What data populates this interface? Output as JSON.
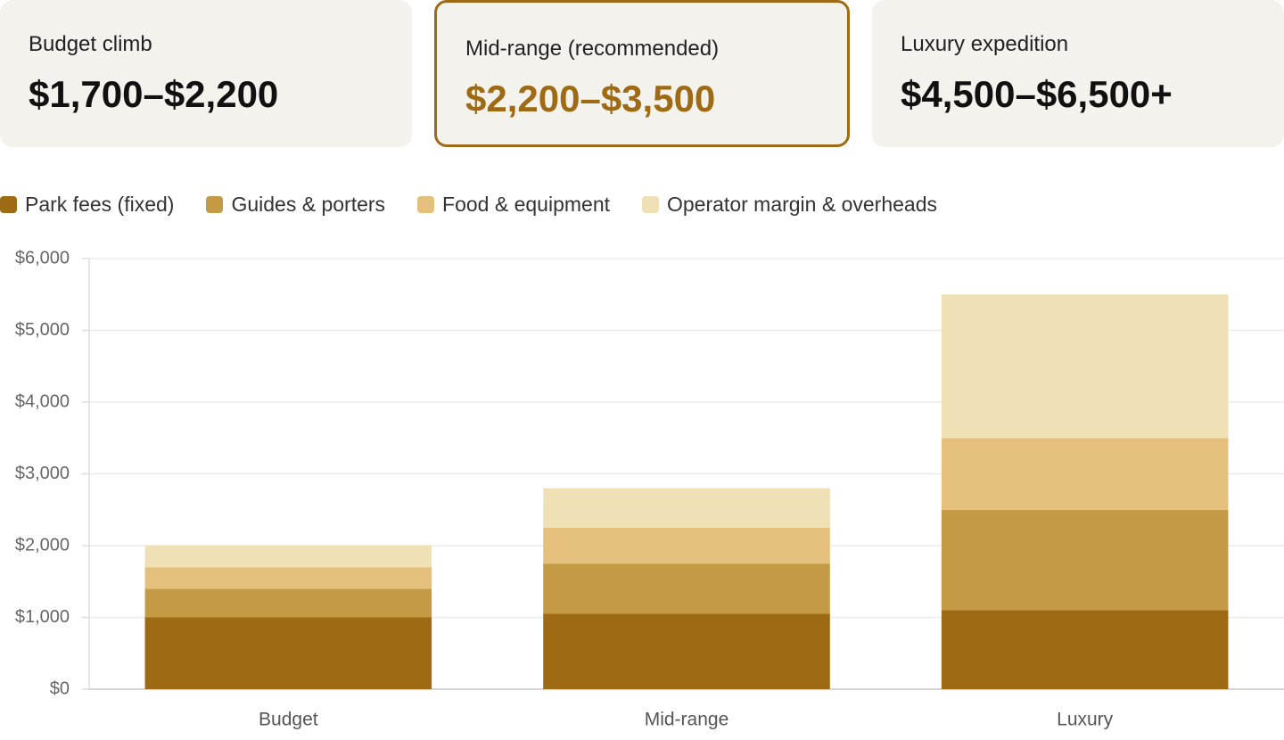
{
  "cards": [
    {
      "label": "Budget climb",
      "value": "$1,700–$2,200"
    },
    {
      "label": "Mid-range (recommended)",
      "value": "$2,200–$3,500"
    },
    {
      "label": "Luxury expedition",
      "value": "$4,500–$6,500+"
    }
  ],
  "chart_data": {
    "type": "stacked-bar",
    "categories": [
      "Budget",
      "Mid-range",
      "Luxury"
    ],
    "series": [
      {
        "name": "Park fees (fixed)",
        "color": "#9e6a14",
        "values": [
          1000,
          1050,
          1100
        ]
      },
      {
        "name": "Guides & porters",
        "color": "#c49a45",
        "values": [
          400,
          700,
          1400
        ]
      },
      {
        "name": "Food & equipment",
        "color": "#e5c07d",
        "values": [
          300,
          500,
          1000
        ]
      },
      {
        "name": "Operator margin & overheads",
        "color": "#efe0b6",
        "values": [
          300,
          550,
          2000
        ]
      }
    ],
    "ylim": [
      0,
      6000
    ],
    "yticks": [
      {
        "value": 0,
        "label": "$0"
      },
      {
        "value": 1000,
        "label": "$1,000"
      },
      {
        "value": 2000,
        "label": "$2,000"
      },
      {
        "value": 3000,
        "label": "$3,000"
      },
      {
        "value": 4000,
        "label": "$4,000"
      },
      {
        "value": 5000,
        "label": "$5,000"
      },
      {
        "value": 6000,
        "label": "$6,000"
      }
    ],
    "grid": true,
    "legend": "top-left"
  }
}
